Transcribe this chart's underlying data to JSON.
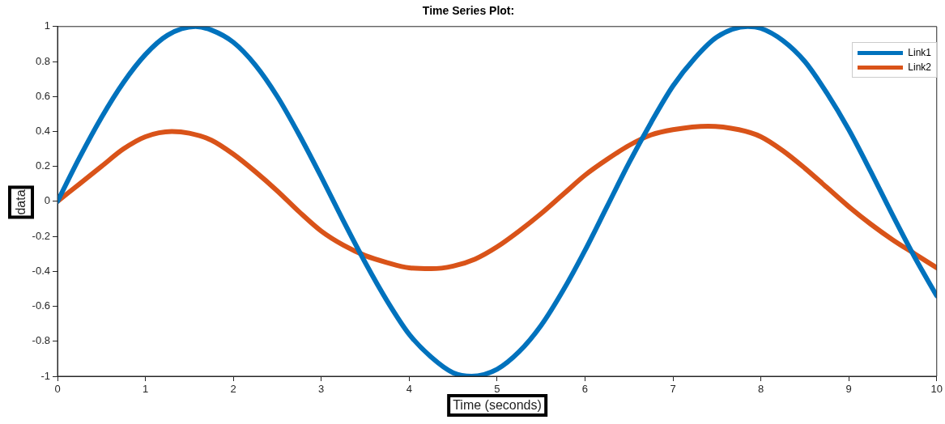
{
  "chart_data": {
    "type": "line",
    "title": "Time Series Plot:",
    "xlabel": "Time (seconds)",
    "ylabel": "data",
    "xlim": [
      0,
      10
    ],
    "xticks": [
      0,
      1,
      2,
      3,
      4,
      5,
      6,
      7,
      8,
      9,
      10
    ],
    "ylim": [
      -1,
      1
    ],
    "yticks": [
      -1,
      -0.8,
      -0.6,
      -0.4,
      -0.2,
      0,
      0.2,
      0.4,
      0.6,
      0.8,
      1
    ],
    "grid": false,
    "legend": "top right",
    "marker": "none",
    "line_style": "solid",
    "series": [
      {
        "name": "Link1",
        "color": "#0072bd",
        "x": [
          0,
          0.25,
          0.5,
          0.75,
          1,
          1.25,
          1.57,
          1.75,
          2,
          2.25,
          2.5,
          2.75,
          3,
          3.25,
          3.5,
          3.75,
          4,
          4.25,
          4.5,
          4.71,
          5,
          5.25,
          5.5,
          5.75,
          6,
          6.25,
          6.5,
          6.75,
          7,
          7.25,
          7.5,
          7.85,
          8,
          8.25,
          8.5,
          8.75,
          9,
          9.25,
          9.5,
          9.75,
          10
        ],
        "values": [
          0,
          0.25,
          0.48,
          0.68,
          0.84,
          0.95,
          1,
          0.98,
          0.91,
          0.78,
          0.6,
          0.38,
          0.14,
          -0.11,
          -0.35,
          -0.57,
          -0.76,
          -0.89,
          -0.98,
          -1,
          -0.96,
          -0.86,
          -0.71,
          -0.51,
          -0.28,
          -0.03,
          0.22,
          0.45,
          0.66,
          0.82,
          0.94,
          1,
          0.99,
          0.92,
          0.8,
          0.62,
          0.41,
          0.17,
          -0.08,
          -0.32,
          -0.54
        ]
      },
      {
        "name": "Link2",
        "color": "#d95319",
        "x": [
          0,
          0.25,
          0.5,
          0.75,
          1,
          1.3,
          1.5,
          1.75,
          2,
          2.25,
          2.5,
          2.75,
          3,
          3.25,
          3.5,
          3.75,
          4,
          4.25,
          4.5,
          4.75,
          5,
          5.25,
          5.5,
          5.75,
          6,
          6.25,
          6.5,
          6.75,
          7,
          7.4,
          7.75,
          8,
          8.25,
          8.5,
          8.75,
          9,
          9.25,
          9.5,
          9.75,
          10
        ],
        "values": [
          0,
          0.1,
          0.2,
          0.3,
          0.37,
          0.4,
          0.39,
          0.35,
          0.27,
          0.17,
          0.06,
          -0.06,
          -0.17,
          -0.25,
          -0.31,
          -0.35,
          -0.38,
          -0.385,
          -0.37,
          -0.33,
          -0.26,
          -0.17,
          -0.07,
          0.04,
          0.15,
          0.24,
          0.32,
          0.38,
          0.41,
          0.43,
          0.41,
          0.37,
          0.29,
          0.19,
          0.08,
          -0.03,
          -0.13,
          -0.22,
          -0.3,
          -0.38
        ]
      }
    ]
  }
}
